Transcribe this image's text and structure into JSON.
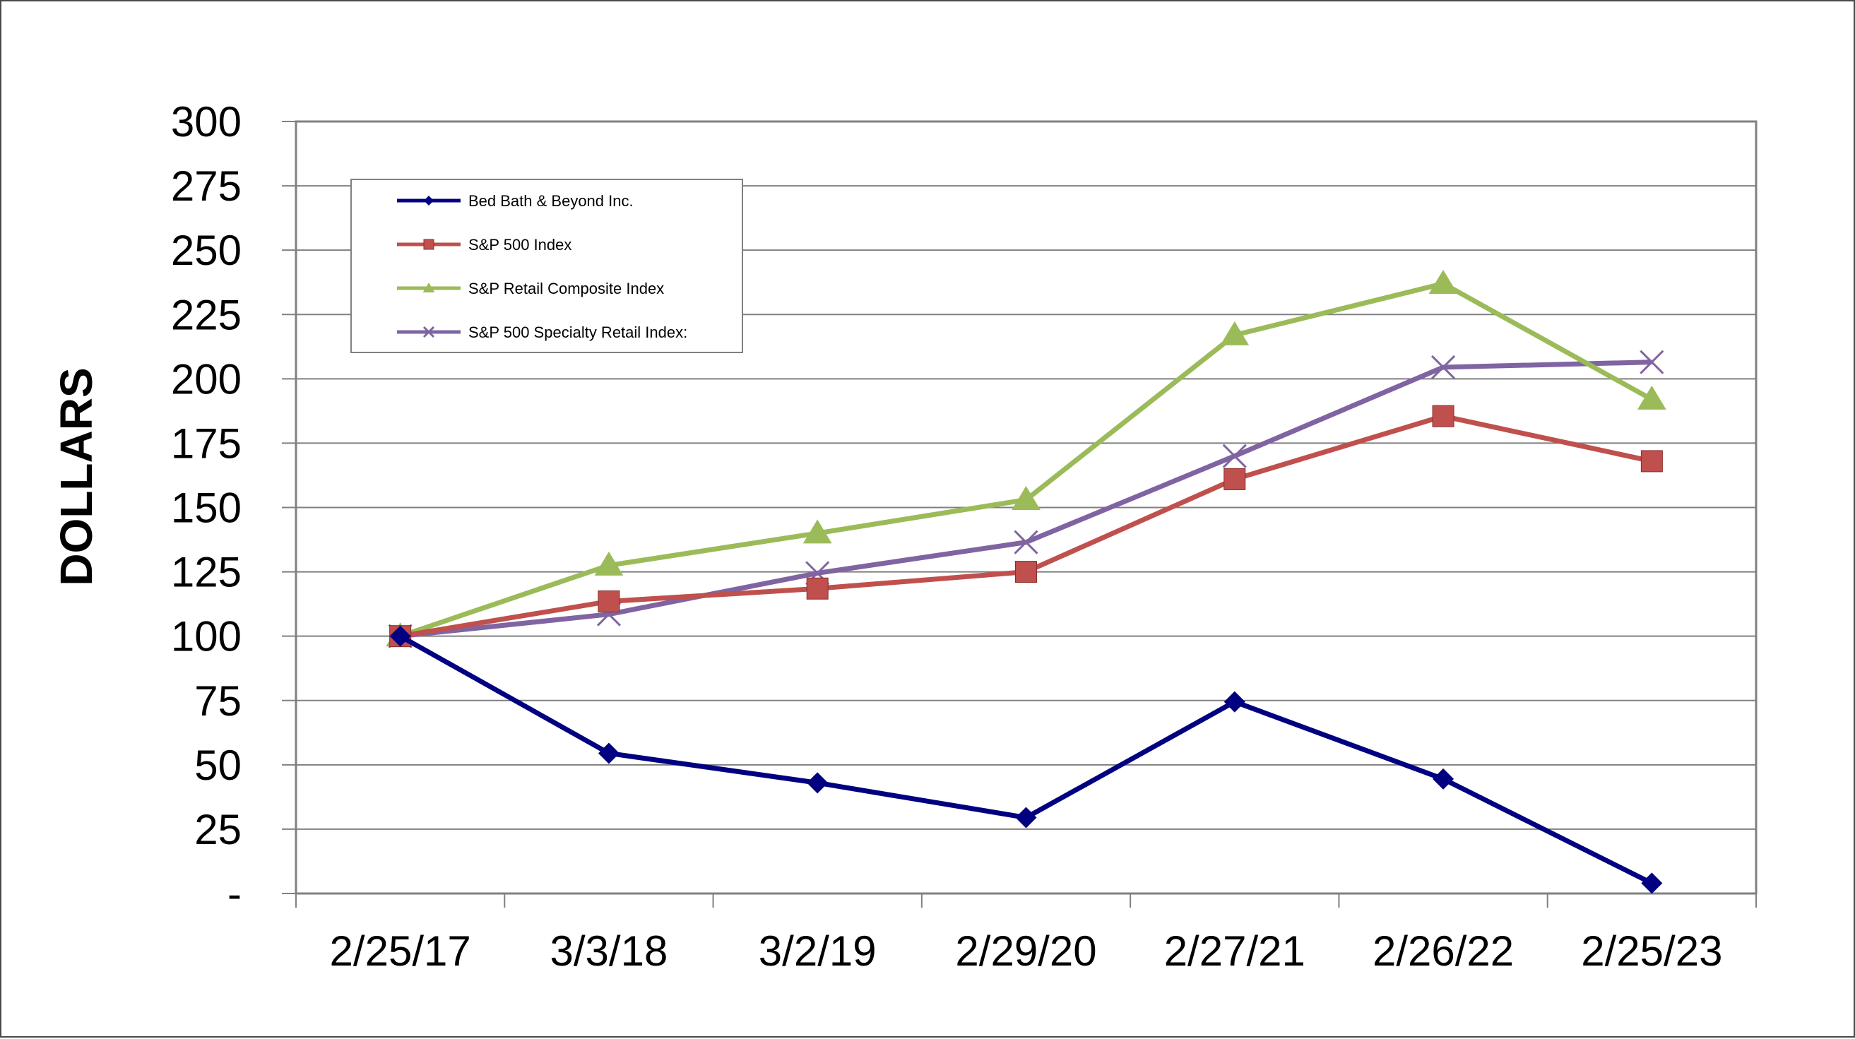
{
  "chart_data": {
    "type": "line",
    "title": "",
    "xlabel": "",
    "ylabel": "DOLLARS",
    "categories": [
      "2/25/17",
      "3/3/18",
      "3/2/19",
      "2/29/20",
      "2/27/21",
      "2/26/22",
      "2/25/23"
    ],
    "ylim": [
      0,
      300
    ],
    "yticks": [
      0,
      25,
      50,
      75,
      100,
      125,
      150,
      175,
      200,
      225,
      250,
      275,
      300
    ],
    "ytick_labels": [
      "-",
      "25",
      "50",
      "75",
      "100",
      "125",
      "150",
      "175",
      "200",
      "225",
      "250",
      "275",
      "300"
    ],
    "grid": true,
    "legend_position": "top-left",
    "series": [
      {
        "name": "Bed Bath & Beyond Inc.",
        "color": "#000080",
        "marker": "diamond",
        "values": [
          100,
          54.5,
          43,
          29.5,
          74.5,
          44.5,
          4
        ]
      },
      {
        "name": "S&P 500 Index",
        "color": "#c0504d",
        "marker": "square",
        "values": [
          100,
          113.5,
          118.5,
          125,
          161,
          185.5,
          168
        ]
      },
      {
        "name": "S&P Retail Composite Index",
        "color": "#9bbb59",
        "marker": "triangle",
        "values": [
          100,
          127.5,
          140,
          153,
          217,
          237,
          192
        ]
      },
      {
        "name": "S&P 500 Specialty Retail Index:",
        "color": "#8064a2",
        "marker": "x",
        "values": [
          100,
          108.5,
          124.5,
          136.5,
          170,
          204.5,
          206.5
        ]
      }
    ]
  }
}
